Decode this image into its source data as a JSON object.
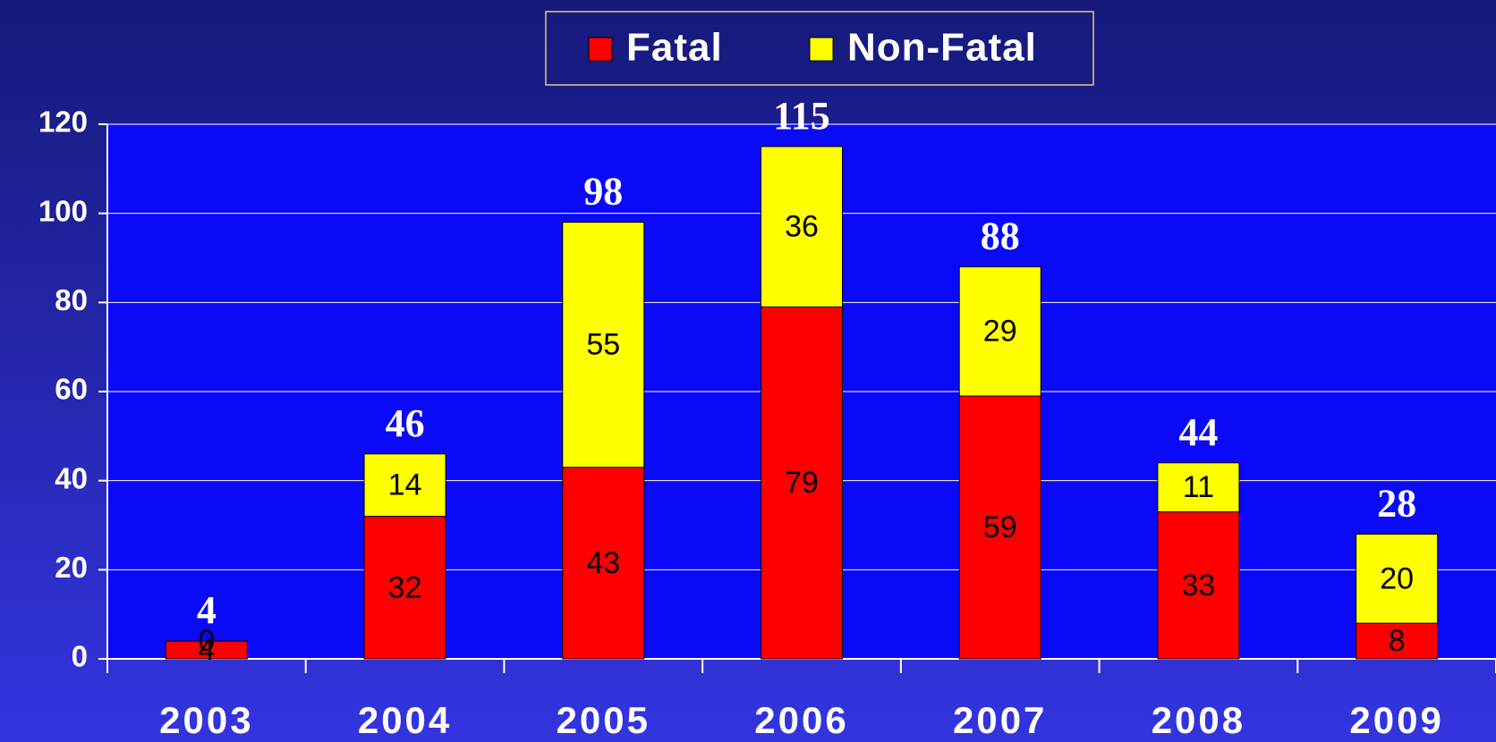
{
  "chart_data": {
    "type": "stacked_bar",
    "categories": [
      "2003",
      "2004",
      "2005",
      "2006",
      "2007",
      "2008",
      "2009"
    ],
    "series": [
      {
        "name": "Fatal",
        "color": "#ff0000",
        "values": [
          4,
          32,
          43,
          79,
          59,
          33,
          8
        ]
      },
      {
        "name": "Non-Fatal",
        "color": "#ffff00",
        "values": [
          0,
          14,
          55,
          36,
          29,
          11,
          20
        ]
      }
    ],
    "totals": [
      4,
      46,
      98,
      115,
      88,
      44,
      28
    ],
    "ylim": [
      0,
      120
    ],
    "yticks": [
      0,
      20,
      40,
      60,
      80,
      100,
      120
    ],
    "grid": true
  }
}
